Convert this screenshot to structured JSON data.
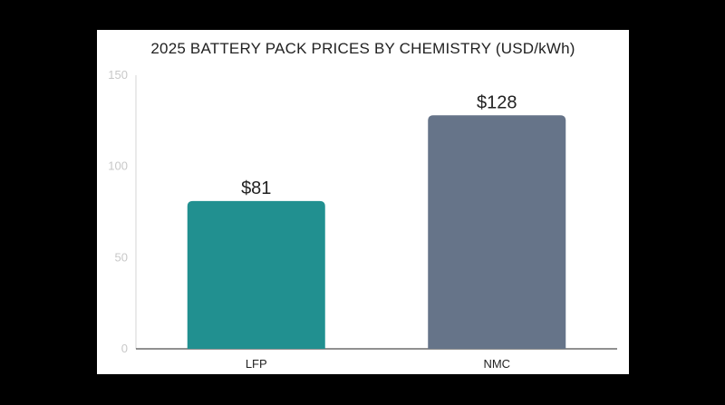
{
  "chart_data": {
    "type": "bar",
    "title": "2025 BATTERY PACK PRICES BY CHEMISTRY (USD/kWh)",
    "xlabel": "",
    "ylabel": "",
    "categories": [
      "LFP",
      "NMC"
    ],
    "values": [
      81,
      128
    ],
    "data_labels": [
      "$81",
      "$128"
    ],
    "colors": [
      "#219090",
      "#667489"
    ],
    "ylim": [
      0,
      150
    ],
    "yticks": [
      "0",
      "50",
      "100",
      "150"
    ],
    "ytick_values": [
      0,
      50,
      100,
      150
    ],
    "grid": false,
    "legend": "none"
  }
}
